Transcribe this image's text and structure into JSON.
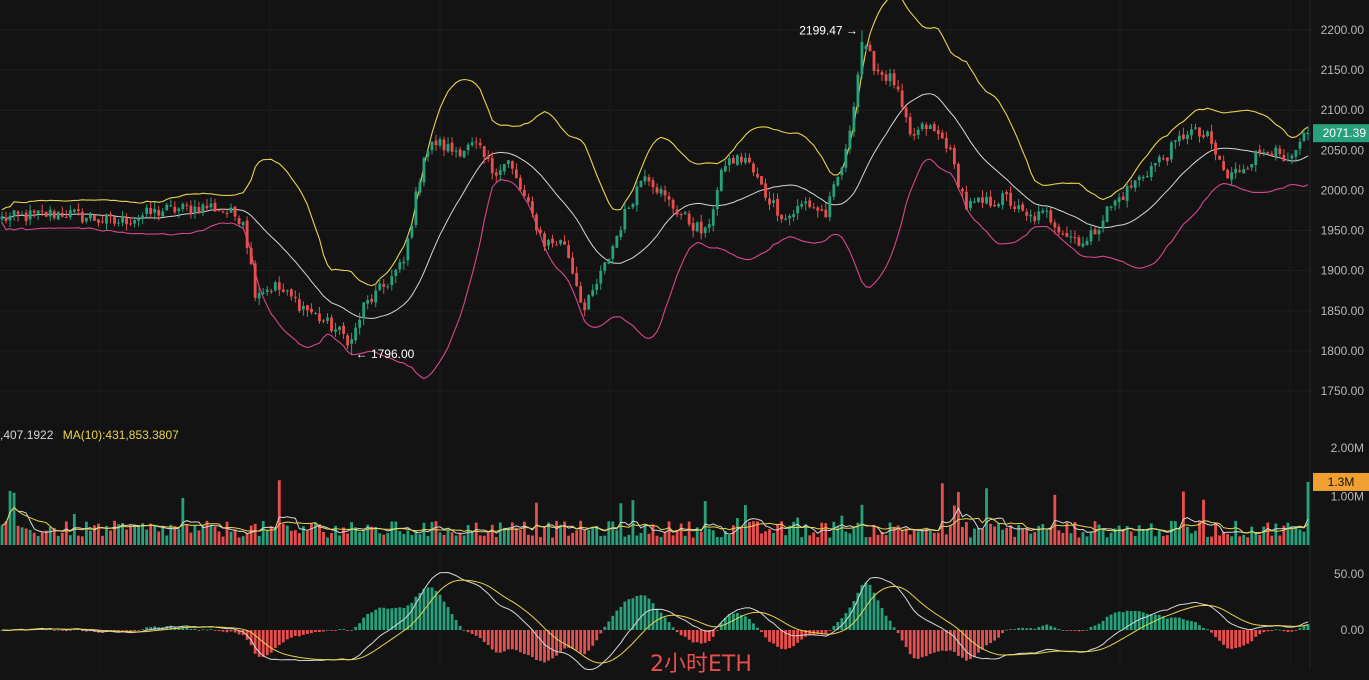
{
  "colors": {
    "background": "#131313",
    "up": "#26a17b",
    "down": "#e84e4e",
    "bollinger_upper": "#e9d34c",
    "bollinger_middle": "#d6d6d6",
    "bollinger_lower": "#d9468f",
    "ma5": "#d6d6d6",
    "ma10": "#e9d34c",
    "dif": "#d6d6d6",
    "dea": "#e9d34c",
    "price_badge": "#26a17b",
    "volume_badge": "#f0a030"
  },
  "chart_data": [
    {
      "type": "candlestick",
      "panel": "price",
      "y_tick_labels": [
        "2200.00",
        "2150.00",
        "2100.00",
        "2050.00",
        "2000.00",
        "1950.00",
        "1900.00",
        "1850.00",
        "1800.00",
        "1750.00"
      ],
      "ylim": [
        1725,
        2225
      ],
      "grid": true,
      "last_price": 2071.39,
      "last_price_label": "2071.39",
      "annotations": [
        {
          "label": "2199.47 →",
          "value": 2199.47,
          "type": "high"
        },
        {
          "label": "← 1796.00",
          "value": 1796.0,
          "type": "low"
        }
      ],
      "anchors": [
        {
          "i": 0,
          "c": 1965
        },
        {
          "i": 15,
          "c": 1972
        },
        {
          "i": 28,
          "c": 1960
        },
        {
          "i": 40,
          "c": 1975
        },
        {
          "i": 52,
          "c": 1980
        },
        {
          "i": 60,
          "c": 1965
        },
        {
          "i": 63,
          "c": 1875
        },
        {
          "i": 68,
          "c": 1880
        },
        {
          "i": 75,
          "c": 1855
        },
        {
          "i": 82,
          "c": 1830
        },
        {
          "i": 87,
          "c": 1812
        },
        {
          "i": 90,
          "c": 1855
        },
        {
          "i": 95,
          "c": 1880
        },
        {
          "i": 100,
          "c": 1910
        },
        {
          "i": 105,
          "c": 2045
        },
        {
          "i": 108,
          "c": 2060
        },
        {
          "i": 112,
          "c": 2050
        },
        {
          "i": 118,
          "c": 2055
        },
        {
          "i": 122,
          "c": 2025
        },
        {
          "i": 126,
          "c": 2035
        },
        {
          "i": 130,
          "c": 1990
        },
        {
          "i": 135,
          "c": 1935
        },
        {
          "i": 140,
          "c": 1935
        },
        {
          "i": 145,
          "c": 1850
        },
        {
          "i": 150,
          "c": 1905
        },
        {
          "i": 155,
          "c": 1970
        },
        {
          "i": 160,
          "c": 2025
        },
        {
          "i": 165,
          "c": 1990
        },
        {
          "i": 170,
          "c": 1965
        },
        {
          "i": 175,
          "c": 1945
        },
        {
          "i": 180,
          "c": 2035
        },
        {
          "i": 185,
          "c": 2040
        },
        {
          "i": 190,
          "c": 1995
        },
        {
          "i": 195,
          "c": 1965
        },
        {
          "i": 200,
          "c": 1985
        },
        {
          "i": 205,
          "c": 1970
        },
        {
          "i": 210,
          "c": 2045
        },
        {
          "i": 214,
          "c": 2180
        },
        {
          "i": 218,
          "c": 2150
        },
        {
          "i": 222,
          "c": 2135
        },
        {
          "i": 226,
          "c": 2065
        },
        {
          "i": 230,
          "c": 2080
        },
        {
          "i": 235,
          "c": 2060
        },
        {
          "i": 240,
          "c": 1980
        },
        {
          "i": 245,
          "c": 1985
        },
        {
          "i": 250,
          "c": 1990
        },
        {
          "i": 255,
          "c": 1965
        },
        {
          "i": 260,
          "c": 1970
        },
        {
          "i": 265,
          "c": 1945
        },
        {
          "i": 270,
          "c": 1935
        },
        {
          "i": 275,
          "c": 1975
        },
        {
          "i": 280,
          "c": 2000
        },
        {
          "i": 285,
          "c": 2025
        },
        {
          "i": 290,
          "c": 2045
        },
        {
          "i": 295,
          "c": 2075
        },
        {
          "i": 300,
          "c": 2065
        },
        {
          "i": 305,
          "c": 2015
        },
        {
          "i": 310,
          "c": 2035
        },
        {
          "i": 315,
          "c": 2055
        },
        {
          "i": 320,
          "c": 2030
        },
        {
          "i": 325,
          "c": 2071
        }
      ],
      "count": 326
    },
    {
      "type": "bar",
      "panel": "volume",
      "legend": {
        "volume_label": ",407.1922",
        "ma10_label": "MA(10):431,853.3807"
      },
      "y_tick_labels": [
        "2.00M",
        "1.00M"
      ],
      "ylim": [
        0,
        2000000
      ],
      "last_volume_label": "1.3M",
      "last_volume": 1300000
    },
    {
      "type": "bar",
      "panel": "macd",
      "y_tick_labels": [
        "50.00",
        "0.00"
      ],
      "ylim": [
        -65,
        65
      ]
    }
  ],
  "caption": "2小时ETH"
}
